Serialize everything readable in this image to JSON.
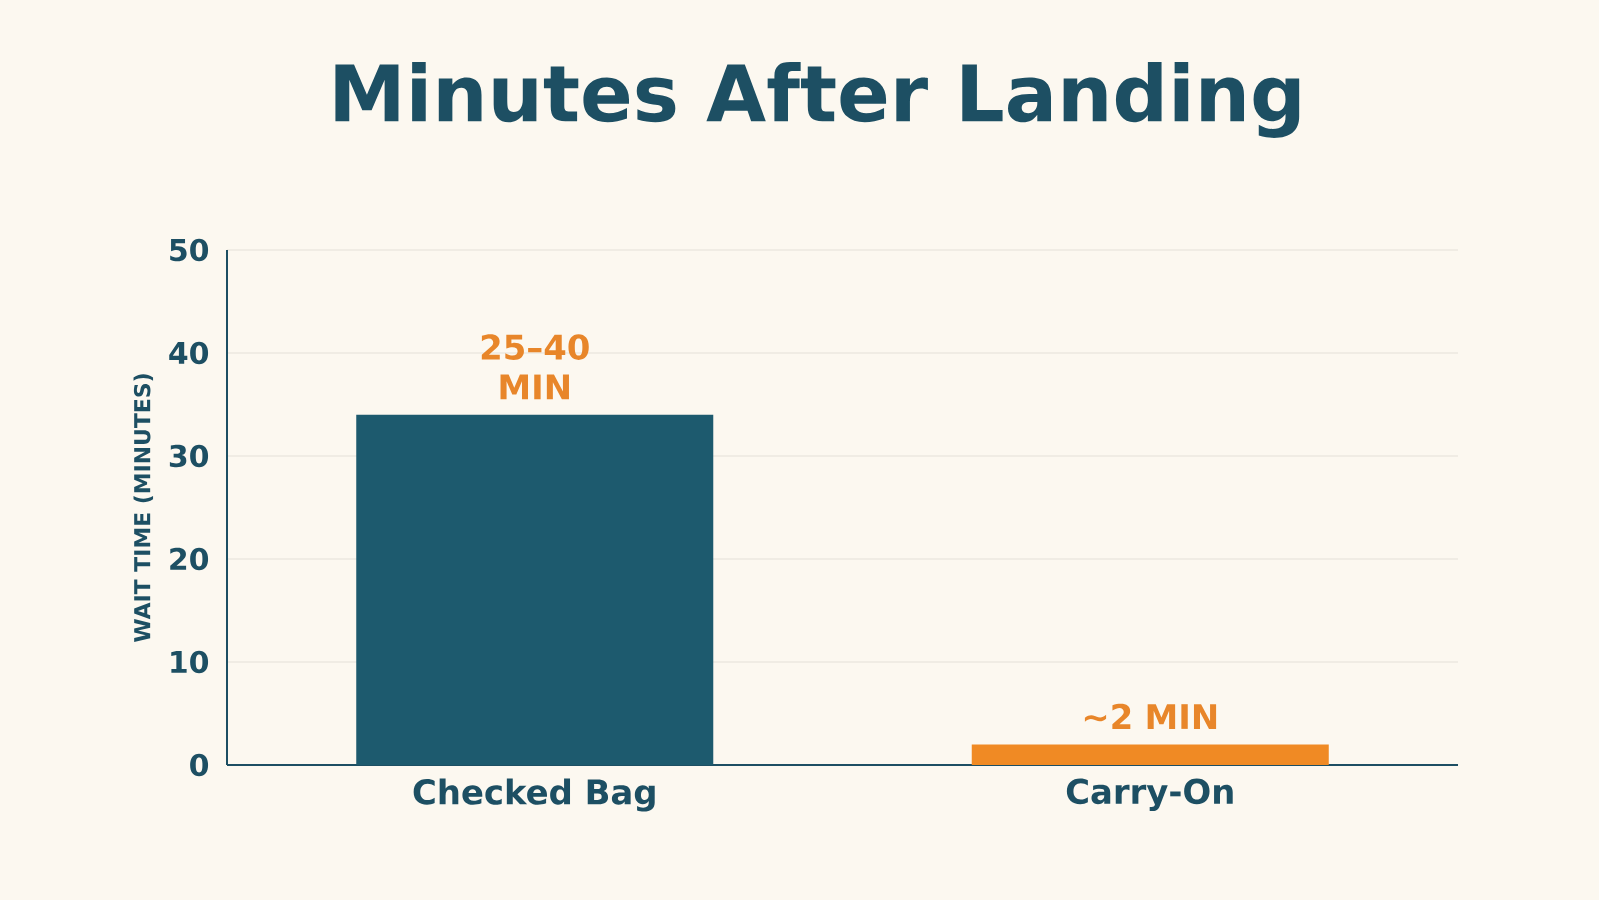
{
  "chart_data": {
    "type": "bar",
    "title": "Minutes After Landing",
    "ylabel": "WAIT TIME (MINUTES)",
    "categories": [
      "Checked Bag",
      "Carry-On"
    ],
    "values": [
      34,
      2
    ],
    "colors": [
      "#1d5a6e",
      "#f08a24"
    ],
    "value_labels": [
      "25–40 MIN",
      "~2 MIN"
    ],
    "ylim": [
      0,
      50
    ],
    "yticks": [
      0,
      10,
      20,
      30,
      40,
      50
    ],
    "grid": "y"
  }
}
